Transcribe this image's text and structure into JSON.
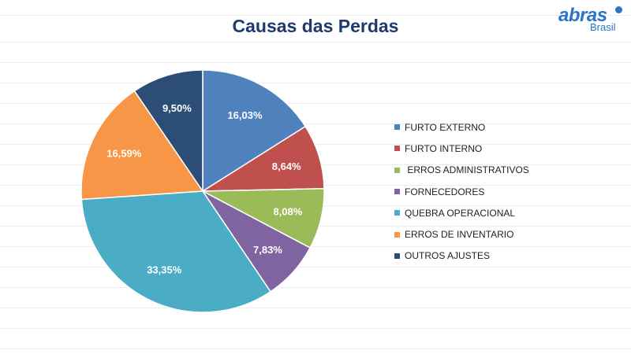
{
  "logo": {
    "word": "abras",
    "sub": "Brasil"
  },
  "chart_data": {
    "type": "pie",
    "title": "Causas das Perdas",
    "legend_position": "right",
    "slices": [
      {
        "label": "FURTO EXTERNO",
        "value": 16.03,
        "display": "16,03%",
        "color": "#4f81bd"
      },
      {
        "label": "FURTO INTERNO",
        "value": 8.64,
        "display": "8,64%",
        "color": "#c0504d"
      },
      {
        "label": " ERROS ADMINISTRATIVOS",
        "value": 8.08,
        "display": "8,08%",
        "color": "#9bbb59"
      },
      {
        "label": "FORNECEDORES",
        "value": 7.83,
        "display": "7,83%",
        "color": "#8064a2"
      },
      {
        "label": "QUEBRA OPERACIONAL",
        "value": 33.35,
        "display": "33,35%",
        "color": "#4bacc6"
      },
      {
        "label": "ERROS DE INVENTARIO",
        "value": 16.59,
        "display": "16,59%",
        "color": "#f79646"
      },
      {
        "label": "OUTROS AJUSTES",
        "value": 9.5,
        "display": "9,50%",
        "color": "#2c4d75"
      }
    ]
  }
}
